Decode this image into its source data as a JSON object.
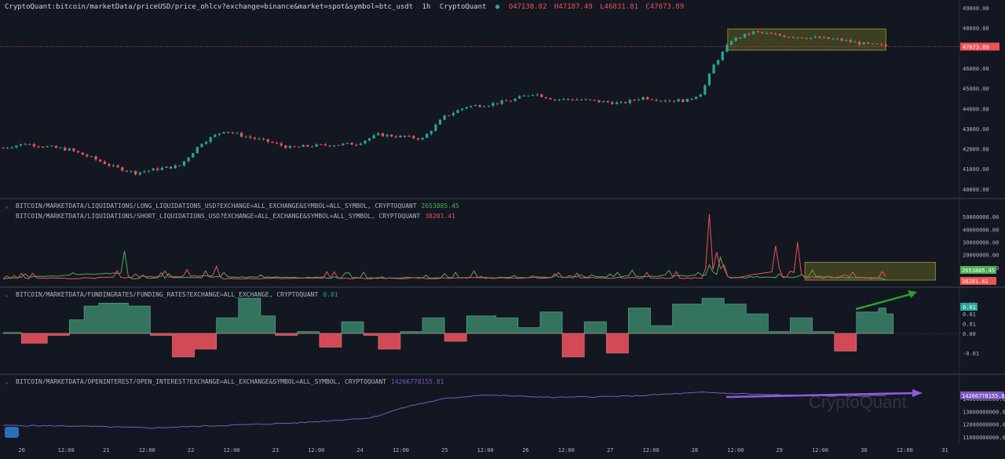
{
  "header": {
    "symbol": "CryptoQuant:bitcoin/marketData/priceUSD/price_ohlcv?exchange=binance&market=spot&symbol=btc_usdt",
    "interval": "1h",
    "source": "CryptoQuant",
    "open": "O47130.02",
    "high": "H47187.49",
    "low": "L46831.81",
    "close": "C47073.89"
  },
  "colors": {
    "background": "#131722",
    "up": "#26a69a",
    "down": "#ef5350",
    "long_liq": "#ef5350",
    "short_liq": "#4caf50",
    "funding_pos": "#3d8c6e",
    "funding_neg": "#e8505b",
    "open_interest": "#7e57c2",
    "highlight": "#8d8a25",
    "arrow_green": "#2e9d2e",
    "arrow_purple": "#8c5ce0"
  },
  "watermark": "CryptoQuant",
  "chart_data": [
    {
      "type": "candlestick",
      "name": "price",
      "ylim": [
        39800,
        49000
      ],
      "y_ticks": [
        "40000.00",
        "41000.00",
        "42000.00",
        "43000.00",
        "44000.00",
        "45000.00",
        "46000.00",
        "47000.00",
        "48000.00",
        "49000.00"
      ],
      "last_value_label": "47073.89",
      "last_value": 47073.89,
      "series_close": [
        [
          0,
          42050
        ],
        [
          6,
          42250
        ],
        [
          12,
          42100
        ],
        [
          18,
          41950
        ],
        [
          24,
          41550
        ],
        [
          30,
          41100
        ],
        [
          36,
          40800
        ],
        [
          42,
          41000
        ],
        [
          48,
          41150
        ],
        [
          54,
          42300
        ],
        [
          60,
          42900
        ],
        [
          66,
          42600
        ],
        [
          72,
          42350
        ],
        [
          78,
          42050
        ],
        [
          84,
          42150
        ],
        [
          90,
          42200
        ],
        [
          96,
          42250
        ],
        [
          102,
          42700
        ],
        [
          108,
          42600
        ],
        [
          114,
          42500
        ],
        [
          120,
          43600
        ],
        [
          126,
          44100
        ],
        [
          132,
          44200
        ],
        [
          138,
          44400
        ],
        [
          144,
          44750
        ],
        [
          150,
          44450
        ],
        [
          156,
          44450
        ],
        [
          162,
          44350
        ],
        [
          168,
          44250
        ],
        [
          174,
          44550
        ],
        [
          180,
          44400
        ],
        [
          186,
          44400
        ],
        [
          190,
          44800
        ],
        [
          193,
          46100
        ],
        [
          198,
          47400
        ],
        [
          204,
          47800
        ],
        [
          210,
          47650
        ],
        [
          216,
          47550
        ],
        [
          222,
          47500
        ],
        [
          228,
          47400
        ],
        [
          234,
          47200
        ],
        [
          240,
          47100
        ]
      ],
      "x_max": 250,
      "highlight_box": {
        "x": [
          197,
          240
        ],
        "y": [
          46900,
          47950
        ]
      }
    },
    {
      "type": "line",
      "name": "liquidations",
      "legend": [
        {
          "label": "BITCOIN/MARKETDATA/LIQUIDATIONS/LONG_LIQUIDATIONS_USD?EXCHANGE=ALL_EXCHANGE&SYMBOL=ALL_SYMBOL, CRYPTOQUANT",
          "value": "2653885.45"
        },
        {
          "label": "BITCOIN/MARKETDATA/LIQUIDATIONS/SHORT_LIQUIDATIONS_USD?EXCHANGE=ALL_EXCHANGE&SYMBOL=ALL_SYMBOL, CRYPTOQUANT",
          "value": "38201.41"
        }
      ],
      "ylim": [
        0,
        55000000
      ],
      "y_ticks": [
        "10000000.00",
        "20000000.00",
        "30000000.00",
        "40000000.00",
        "50000000.00"
      ],
      "long_series": [
        [
          0,
          1000000
        ],
        [
          20,
          1200000
        ],
        [
          58,
          11000000
        ],
        [
          60,
          800000
        ],
        [
          100,
          1000000
        ],
        [
          150,
          3000000
        ],
        [
          190,
          1500000
        ],
        [
          192,
          52000000
        ],
        [
          194,
          22000000
        ],
        [
          196,
          12000000
        ],
        [
          198,
          1500000
        ],
        [
          210,
          27000000
        ],
        [
          212,
          2000000
        ],
        [
          216,
          30000000
        ],
        [
          218,
          2000000
        ],
        [
          240,
          2653885.45
        ]
      ],
      "short_series": [
        [
          0,
          1000000
        ],
        [
          33,
          23000000
        ],
        [
          35,
          1000000
        ],
        [
          60,
          6000000
        ],
        [
          100,
          2000000
        ],
        [
          150,
          5000000
        ],
        [
          192,
          12000000
        ],
        [
          195,
          18000000
        ],
        [
          198,
          2000000
        ],
        [
          220,
          8000000
        ],
        [
          240,
          38201.41
        ]
      ],
      "last_labels": [
        "2653885.45",
        "38201.41"
      ],
      "x_max": 250,
      "highlight_box": {
        "x": [
          218,
          262
        ],
        "y": [
          0,
          14000000
        ]
      }
    },
    {
      "type": "area",
      "name": "funding_rates",
      "legend": [
        {
          "label": "BITCOIN/MARKETDATA/FUNDINGRATES/FUNDING_RATES?EXCHANGE=ALL_EXCHANGE, CRYPTOQUANT",
          "value": "0.01"
        }
      ],
      "ylim": [
        -0.018,
        0.02
      ],
      "y_ticks": [
        "-0.01",
        "0.00",
        "0.01",
        "0.01",
        "0.01"
      ],
      "series": [
        [
          0,
          0.0005
        ],
        [
          5,
          -0.005
        ],
        [
          12,
          -0.001
        ],
        [
          18,
          0.007
        ],
        [
          22,
          0.014
        ],
        [
          26,
          0.0155
        ],
        [
          34,
          0.014
        ],
        [
          40,
          -0.001
        ],
        [
          46,
          -0.012
        ],
        [
          52,
          -0.008
        ],
        [
          58,
          0.008
        ],
        [
          64,
          0.018
        ],
        [
          70,
          0.009
        ],
        [
          74,
          -0.001
        ],
        [
          80,
          0.001
        ],
        [
          86,
          -0.007
        ],
        [
          92,
          0.006
        ],
        [
          98,
          -0.001
        ],
        [
          102,
          -0.008
        ],
        [
          108,
          0.001
        ],
        [
          114,
          0.008
        ],
        [
          120,
          -0.004
        ],
        [
          126,
          0.009
        ],
        [
          134,
          0.008
        ],
        [
          140,
          0.003
        ],
        [
          146,
          0.011
        ],
        [
          152,
          -0.012
        ],
        [
          158,
          0.006
        ],
        [
          164,
          -0.01
        ],
        [
          170,
          0.013
        ],
        [
          176,
          0.004
        ],
        [
          182,
          0.015
        ],
        [
          190,
          0.018
        ],
        [
          196,
          0.015
        ],
        [
          202,
          0.01
        ],
        [
          208,
          0.001
        ],
        [
          214,
          0.008
        ],
        [
          220,
          0.001
        ],
        [
          226,
          -0.009
        ],
        [
          232,
          0.011
        ],
        [
          238,
          0.013
        ],
        [
          240,
          0.01
        ]
      ],
      "last_value_label": "0.01",
      "x_max": 250
    },
    {
      "type": "line",
      "name": "open_interest",
      "legend": [
        {
          "label": "BITCOIN/MARKETDATA/OPENINTEREST/OPEN_INTEREST?EXCHANGE=ALL_EXCHANGE&SYMBOL=ALL_SYMBOL, CRYPTOQUANT",
          "value": "14266778155.81"
        }
      ],
      "ylim": [
        10800000000,
        15000000000
      ],
      "y_ticks": [
        "11000000000.00",
        "12000000000.00",
        "13000000000.00",
        "14000000000.00"
      ],
      "series": [
        [
          0,
          11900000000
        ],
        [
          20,
          11850000000
        ],
        [
          40,
          11700000000
        ],
        [
          60,
          11900000000
        ],
        [
          80,
          12100000000
        ],
        [
          100,
          12500000000
        ],
        [
          110,
          13400000000
        ],
        [
          120,
          14000000000
        ],
        [
          130,
          14300000000
        ],
        [
          150,
          14100000000
        ],
        [
          170,
          14200000000
        ],
        [
          190,
          14500000000
        ],
        [
          210,
          14300000000
        ],
        [
          230,
          14200000000
        ],
        [
          240,
          14266778155.81
        ]
      ],
      "last_value_label": "14266778155.81",
      "x_max": 250
    }
  ],
  "x_axis": {
    "ticks": [
      {
        "label": "20",
        "pos": 5
      },
      {
        "label": "12:00",
        "pos": 17
      },
      {
        "label": "21",
        "pos": 28
      },
      {
        "label": "12:00",
        "pos": 39
      },
      {
        "label": "22",
        "pos": 51
      },
      {
        "label": "12:00",
        "pos": 62
      },
      {
        "label": "23",
        "pos": 74
      },
      {
        "label": "12:00",
        "pos": 85
      },
      {
        "label": "24",
        "pos": 97
      },
      {
        "label": "12:00",
        "pos": 108
      },
      {
        "label": "25",
        "pos": 120
      },
      {
        "label": "12:00",
        "pos": 131
      },
      {
        "label": "26",
        "pos": 142
      },
      {
        "label": "12:00",
        "pos": 153
      },
      {
        "label": "27",
        "pos": 165
      },
      {
        "label": "12:00",
        "pos": 176
      },
      {
        "label": "28",
        "pos": 188
      },
      {
        "label": "12:00",
        "pos": 199
      },
      {
        "label": "29",
        "pos": 211
      },
      {
        "label": "12:00",
        "pos": 222
      },
      {
        "label": "30",
        "pos": 234
      },
      {
        "label": "12:00",
        "pos": 245
      },
      {
        "label": "31",
        "pos": 256
      }
    ],
    "max": 260
  }
}
